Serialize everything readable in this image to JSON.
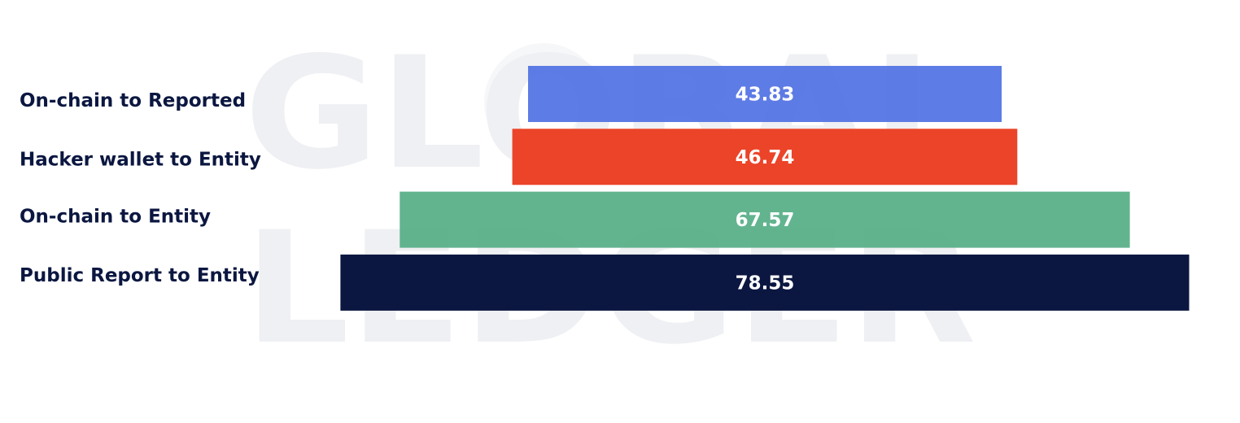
{
  "watermark": {
    "line1": "GLOBAL",
    "line2": "LEDGER",
    "color": "#eff0f3"
  },
  "chart_data": {
    "type": "bar",
    "orientation": "horizontal",
    "centered": true,
    "categories": [
      "On-chain to Reported",
      "Hacker wallet to Entity",
      "On-chain to Entity",
      "Public Report to Entity"
    ],
    "values": [
      43.83,
      46.74,
      67.57,
      78.55
    ],
    "value_labels": [
      "43.83",
      "46.74",
      "67.57",
      "78.55"
    ],
    "colors": [
      "#4d6ee3",
      "#ea3a1d",
      "#55ae86",
      "#0b1740"
    ],
    "bar_opacity": [
      0.9,
      0.95,
      0.92,
      1.0
    ],
    "title": "",
    "xlabel": "",
    "ylabel": "",
    "grid": false,
    "legend": "none"
  }
}
